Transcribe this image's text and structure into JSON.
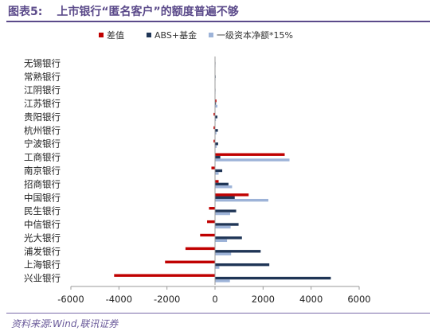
{
  "header": {
    "figure_label": "图表5:",
    "title": "上市银行“匿名客户”的额度普遍不够"
  },
  "source": "资料来源:Wind,联讯证券",
  "chart_data": {
    "type": "bar",
    "orientation": "horizontal",
    "categories": [
      "无锡银行",
      "常熟银行",
      "江阴银行",
      "江苏银行",
      "贵阳银行",
      "杭州银行",
      "宁波银行",
      "工商银行",
      "南京银行",
      "招商银行",
      "中国银行",
      "民生银行",
      "中信银行",
      "光大银行",
      "浦发银行",
      "上海银行",
      "兴业银行"
    ],
    "series": [
      {
        "name": "差值",
        "color": "#c00000",
        "values": [
          -10,
          -15,
          -10,
          60,
          -60,
          -60,
          -60,
          2900,
          -150,
          150,
          1400,
          -250,
          -330,
          -620,
          -1230,
          -2080,
          -4200
        ]
      },
      {
        "name": "ABS+基金",
        "color": "#1f3556",
        "values": [
          15,
          25,
          15,
          40,
          100,
          120,
          130,
          220,
          300,
          560,
          820,
          880,
          980,
          1120,
          1900,
          2260,
          4820
        ]
      },
      {
        "name": "一级资本净额*15%",
        "color": "#9db3d8",
        "values": [
          5,
          10,
          5,
          100,
          40,
          60,
          70,
          3100,
          150,
          710,
          2220,
          630,
          650,
          500,
          670,
          180,
          620
        ]
      }
    ],
    "x_ticks": [
      -6000,
      -4000,
      -2000,
      0,
      2000,
      4000,
      6000
    ],
    "xlim": [
      -6000,
      6000
    ],
    "legend_position": "top-left",
    "grid": false
  }
}
